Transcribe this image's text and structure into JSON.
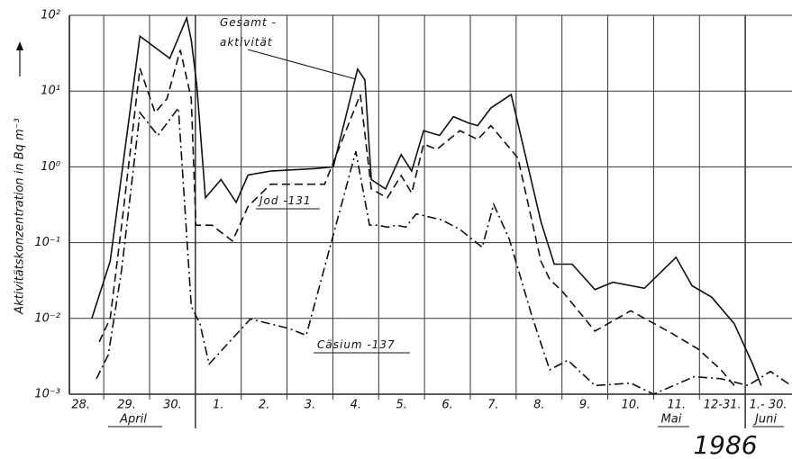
{
  "chart_data": {
    "type": "line",
    "y_label": "Aktivitätskonzentration in  Bq m⁻³",
    "log_y": true,
    "grid": true,
    "xlim": [
      0.25,
      16.02
    ],
    "xticks": [
      {
        "value": 0.5,
        "label": "28."
      },
      {
        "value": 1.5,
        "label": "29."
      },
      {
        "value": 2.5,
        "label": "30."
      },
      {
        "value": 3.5,
        "label": "1."
      },
      {
        "value": 4.5,
        "label": "2."
      },
      {
        "value": 5.5,
        "label": "3."
      },
      {
        "value": 6.5,
        "label": "4."
      },
      {
        "value": 7.5,
        "label": "5."
      },
      {
        "value": 8.5,
        "label": "6."
      },
      {
        "value": 9.5,
        "label": "7."
      },
      {
        "value": 10.5,
        "label": "8."
      },
      {
        "value": 11.5,
        "label": "9."
      },
      {
        "value": 12.5,
        "label": "10."
      },
      {
        "value": 13.5,
        "label": "11."
      },
      {
        "value": 14.5,
        "label": "12-31."
      },
      {
        "value": 15.5,
        "label": "1.- 30."
      }
    ],
    "month_labels": [
      "April",
      "Mai",
      "Juni"
    ],
    "year": "1986",
    "ylim": [
      0.001,
      100
    ],
    "yticks": [
      {
        "value": 100,
        "label": "10²"
      },
      {
        "value": 10,
        "label": "10¹"
      },
      {
        "value": 1,
        "label": "10⁰"
      },
      {
        "value": 0.1,
        "label": "10⁻¹"
      },
      {
        "value": 0.01,
        "label": "10⁻²"
      },
      {
        "value": 0.001,
        "label": "10⁻³"
      }
    ],
    "series": [
      {
        "name": "Gesamt - aktivität",
        "color": "#111111",
        "linestyle": "solid",
        "x": [
          0.74,
          1.14,
          1.79,
          2.44,
          2.81,
          2.91,
          3.03,
          3.22,
          3.56,
          3.89,
          4.15,
          4.64,
          5.62,
          6.01,
          6.54,
          6.7,
          6.84,
          7.15,
          7.49,
          7.72,
          7.98,
          8.33,
          8.63,
          8.96,
          9.16,
          9.45,
          9.89,
          10.54,
          10.83,
          11.22,
          11.72,
          12.11,
          12.8,
          13.49,
          13.84,
          14.27,
          14.76,
          15.16,
          15.35
        ],
        "values": [
          0.01,
          0.057,
          53,
          27,
          92,
          47,
          12,
          0.39,
          0.68,
          0.34,
          0.78,
          0.88,
          0.95,
          1.0,
          19.5,
          14,
          0.68,
          0.51,
          1.45,
          0.88,
          3.0,
          2.6,
          4.6,
          3.8,
          3.5,
          6.0,
          9.0,
          0.19,
          0.052,
          0.052,
          0.024,
          0.03,
          0.025,
          0.064,
          0.027,
          0.019,
          0.0085,
          0.0025,
          0.0013
        ]
      },
      {
        "name": "Jod -131",
        "color": "#111111",
        "linestyle": "dashed",
        "x": [
          0.9,
          1.14,
          1.39,
          1.79,
          2.12,
          2.38,
          2.67,
          2.91,
          3.01,
          3.36,
          3.81,
          4.15,
          4.64,
          5.82,
          6.6,
          6.84,
          7.19,
          7.49,
          7.72,
          7.98,
          8.27,
          8.77,
          9.16,
          9.45,
          10.04,
          10.54,
          10.73,
          11.03,
          11.72,
          12.5,
          13.39,
          13.98,
          14.47,
          14.76
        ],
        "values": [
          0.0049,
          0.01,
          0.17,
          20,
          5.2,
          7.9,
          35,
          7.9,
          0.17,
          0.17,
          0.105,
          0.3,
          0.59,
          0.59,
          9,
          0.51,
          0.39,
          0.77,
          0.45,
          2.0,
          1.7,
          3.0,
          2.3,
          3.5,
          1.3,
          0.057,
          0.033,
          0.022,
          0.0068,
          0.0126,
          0.0064,
          0.0039,
          0.0021,
          0.0013
        ]
      },
      {
        "name": "Cäsium -137",
        "color": "#111111",
        "linestyle": "dashdot",
        "x": [
          0.84,
          1.1,
          1.39,
          1.79,
          2.18,
          2.63,
          2.91,
          3.1,
          3.3,
          4.2,
          5.03,
          5.42,
          6.5,
          6.8,
          6.99,
          7.19,
          7.39,
          7.59,
          7.82,
          8.37,
          8.77,
          9.26,
          9.51,
          9.85,
          10.34,
          10.73,
          11.13,
          11.72,
          12.5,
          13.0,
          13.88,
          14.47,
          15.06,
          15.55,
          16.0
        ],
        "values": [
          0.0016,
          0.0033,
          0.044,
          5.2,
          2.6,
          6.0,
          0.0145,
          0.0085,
          0.0025,
          0.0098,
          0.0074,
          0.006,
          1.6,
          0.17,
          0.17,
          0.16,
          0.17,
          0.16,
          0.24,
          0.2,
          0.15,
          0.087,
          0.32,
          0.112,
          0.011,
          0.0021,
          0.0028,
          0.0013,
          0.0014,
          0.001,
          0.0017,
          0.0016,
          0.0013,
          0.002,
          0.0013
        ]
      }
    ]
  }
}
